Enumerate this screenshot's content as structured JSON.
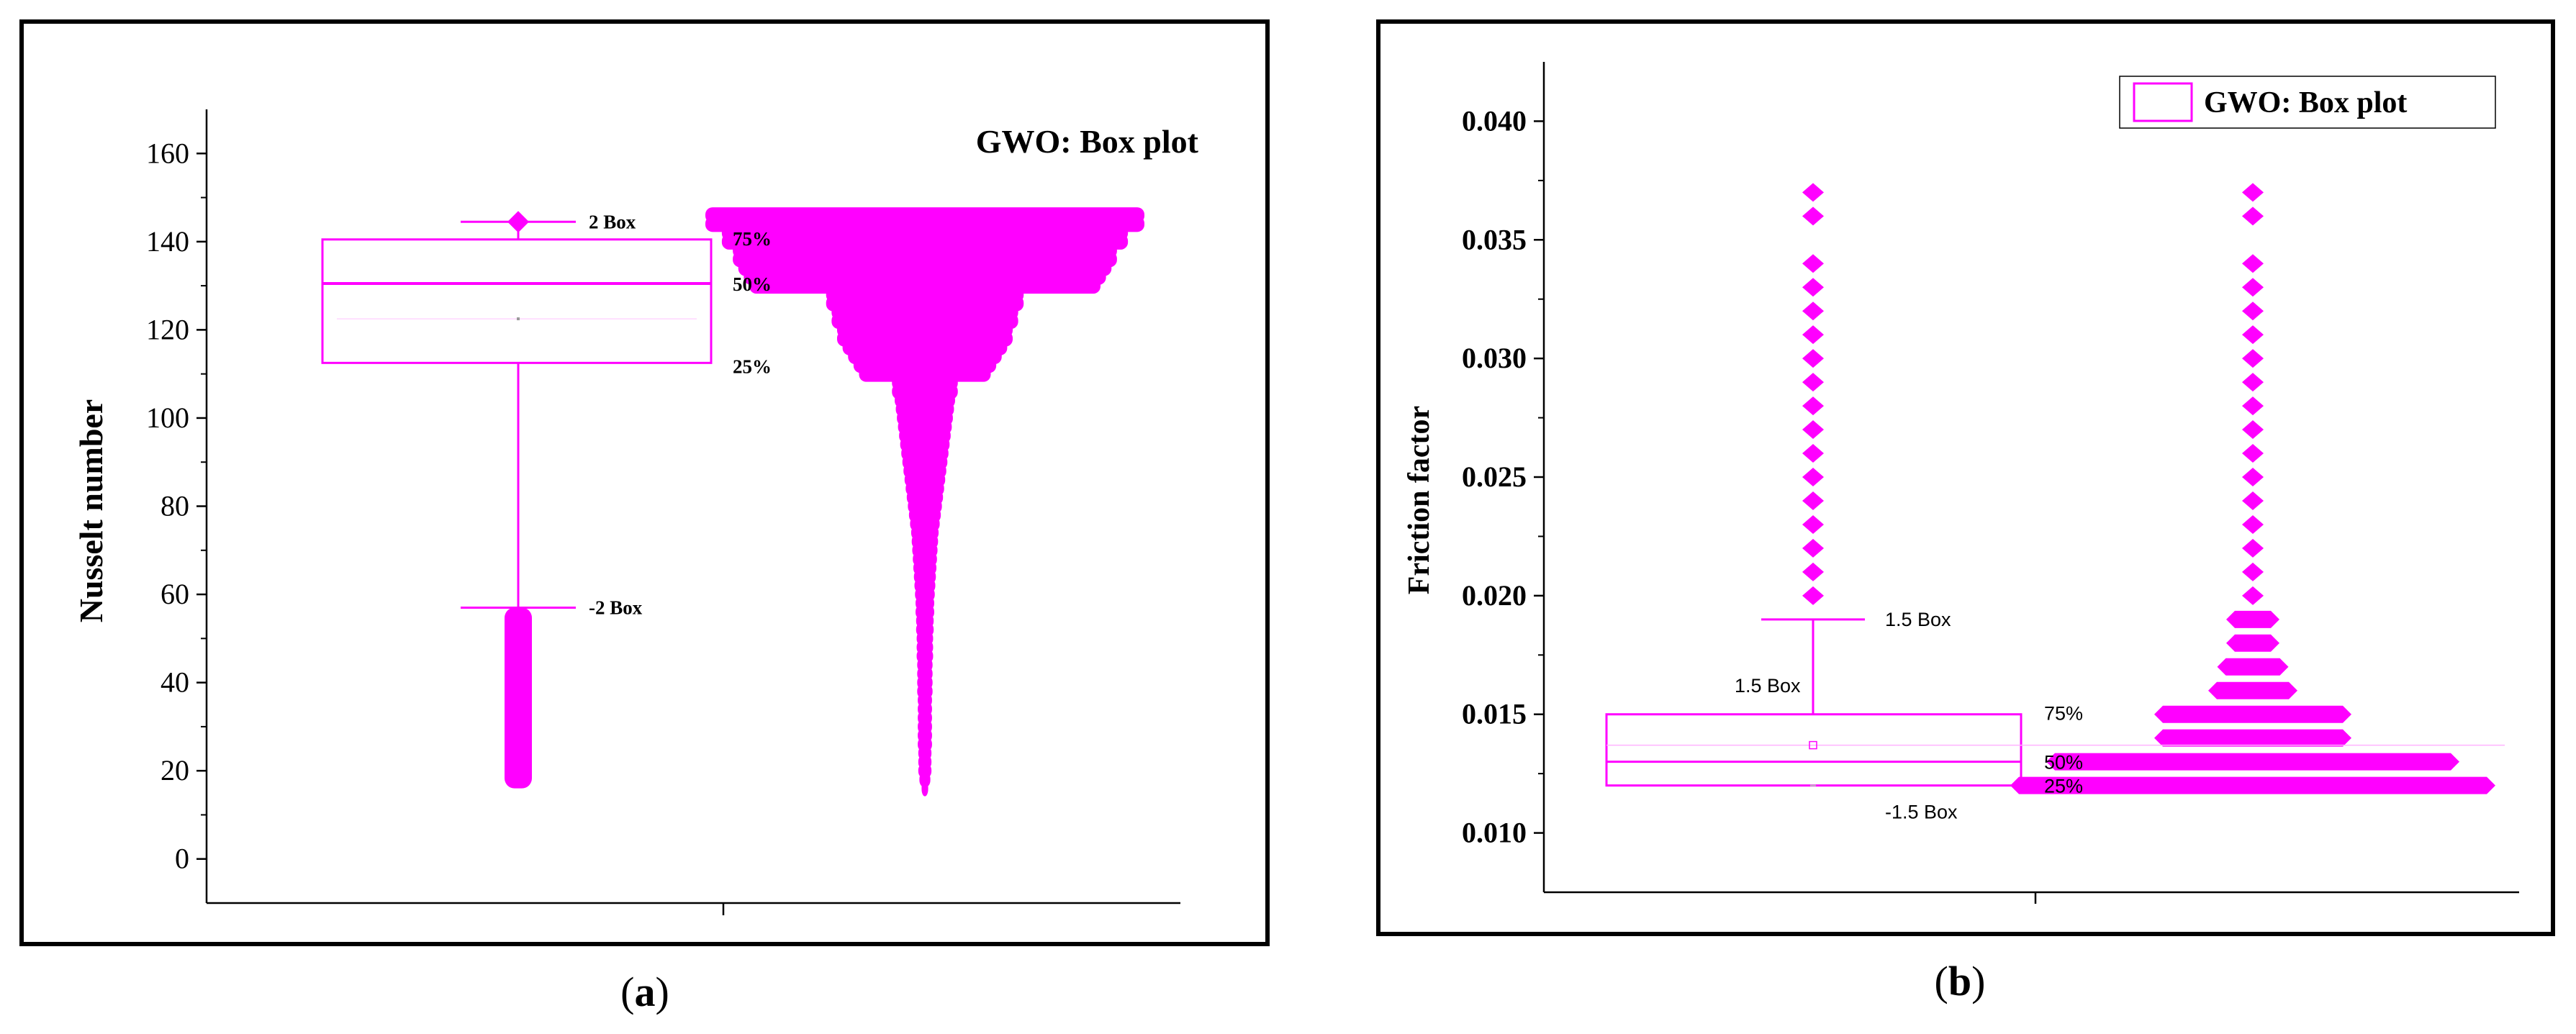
{
  "colors": {
    "accent": "#ff00ff",
    "frame": "#000000",
    "axis": "#000000",
    "background": "#ffffff"
  },
  "chart_data": [
    {
      "type": "box",
      "panel_label": "(a)",
      "title": "GWO: Box plot",
      "xlabel": "",
      "ylabel": "Nusselt number",
      "ylim": [
        -10,
        170
      ],
      "yticks": [
        0,
        20,
        40,
        60,
        80,
        100,
        120,
        140,
        160
      ],
      "ytick_labels": [
        "0",
        "20",
        "40",
        "60",
        "80",
        "100",
        "120",
        "140",
        "160"
      ],
      "legend": "none",
      "box": {
        "q1": 112.5,
        "median": 130.5,
        "q3": 140.5,
        "mean": 122.5,
        "upper_whisker": 144.5,
        "lower_whisker": 57
      },
      "annotations": {
        "upper": "2 Box",
        "lower": "-2 Box",
        "q3": "75%",
        "median": "50%",
        "q1": "25%"
      },
      "outliers": {
        "min": 16,
        "max": 57
      },
      "distribution": [
        [
          146,
          0.4
        ],
        [
          144,
          0.4
        ],
        [
          142,
          0.37
        ],
        [
          140,
          0.37
        ],
        [
          138,
          0.35
        ],
        [
          136,
          0.35
        ],
        [
          134,
          0.34
        ],
        [
          132,
          0.33
        ],
        [
          130,
          0.32
        ],
        [
          128,
          0.18
        ],
        [
          126,
          0.18
        ],
        [
          124,
          0.17
        ],
        [
          122,
          0.17
        ],
        [
          120,
          0.16
        ],
        [
          118,
          0.16
        ],
        [
          116,
          0.15
        ],
        [
          114,
          0.14
        ],
        [
          112,
          0.13
        ],
        [
          110,
          0.12
        ],
        [
          108,
          0.06
        ],
        [
          106,
          0.06
        ],
        [
          104,
          0.055
        ],
        [
          102,
          0.053
        ],
        [
          100,
          0.051
        ],
        [
          98,
          0.049
        ],
        [
          96,
          0.047
        ],
        [
          94,
          0.045
        ],
        [
          92,
          0.043
        ],
        [
          90,
          0.041
        ],
        [
          88,
          0.039
        ],
        [
          86,
          0.037
        ],
        [
          84,
          0.035
        ],
        [
          82,
          0.033
        ],
        [
          80,
          0.031
        ],
        [
          78,
          0.029
        ],
        [
          76,
          0.027
        ],
        [
          74,
          0.025
        ],
        [
          72,
          0.024
        ],
        [
          70,
          0.023
        ],
        [
          68,
          0.022
        ],
        [
          66,
          0.021
        ],
        [
          64,
          0.02
        ],
        [
          62,
          0.019
        ],
        [
          60,
          0.018
        ],
        [
          58,
          0.017
        ],
        [
          56,
          0.017
        ],
        [
          54,
          0.016
        ],
        [
          52,
          0.016
        ],
        [
          50,
          0.015
        ],
        [
          48,
          0.015
        ],
        [
          46,
          0.015
        ],
        [
          44,
          0.014
        ],
        [
          42,
          0.014
        ],
        [
          40,
          0.014
        ],
        [
          38,
          0.014
        ],
        [
          36,
          0.013
        ],
        [
          34,
          0.013
        ],
        [
          32,
          0.013
        ],
        [
          30,
          0.013
        ],
        [
          28,
          0.013
        ],
        [
          26,
          0.013
        ],
        [
          24,
          0.012
        ],
        [
          22,
          0.012
        ],
        [
          20,
          0.012
        ],
        [
          18,
          0.01
        ],
        [
          16,
          0.006
        ]
      ]
    },
    {
      "type": "box",
      "panel_label": "(b)",
      "title": "",
      "legend_label": "GWO: Box plot",
      "legend": "top-right",
      "xlabel": "",
      "ylabel": "Friction factor",
      "ylim": [
        0.0075,
        0.0425
      ],
      "yticks": [
        0.01,
        0.015,
        0.02,
        0.025,
        0.03,
        0.035,
        0.04
      ],
      "ytick_labels": [
        "0.010",
        "0.015",
        "0.020",
        "0.025",
        "0.030",
        "0.035",
        "0.040"
      ],
      "box": {
        "q1": 0.012,
        "median": 0.013,
        "q3": 0.015,
        "mean": 0.0137,
        "upper_whisker": 0.019,
        "lower_whisker": 0.012
      },
      "annotations": {
        "upper": "1.5 Box",
        "upper_inner": "1.5 Box",
        "lower": "-1.5 Box",
        "q3": "75%",
        "median": "50%",
        "q1": "25%"
      },
      "outliers": [
        0.02,
        0.021,
        0.022,
        0.023,
        0.024,
        0.025,
        0.026,
        0.027,
        0.028,
        0.029,
        0.03,
        0.031,
        0.032,
        0.033,
        0.034,
        0.036,
        0.037
      ],
      "distribution": [
        [
          0.037,
          1
        ],
        [
          0.036,
          1
        ],
        [
          0.034,
          1
        ],
        [
          0.033,
          1
        ],
        [
          0.032,
          1
        ],
        [
          0.031,
          1
        ],
        [
          0.03,
          1
        ],
        [
          0.029,
          1
        ],
        [
          0.028,
          1
        ],
        [
          0.027,
          1
        ],
        [
          0.026,
          1
        ],
        [
          0.025,
          1
        ],
        [
          0.024,
          1
        ],
        [
          0.023,
          1
        ],
        [
          0.022,
          1
        ],
        [
          0.021,
          1
        ],
        [
          0.02,
          1
        ],
        [
          0.019,
          2
        ],
        [
          0.018,
          2
        ],
        [
          0.017,
          3
        ],
        [
          0.016,
          4
        ],
        [
          0.015,
          10
        ],
        [
          0.014,
          10
        ],
        [
          0.013,
          22
        ],
        [
          0.012,
          26
        ]
      ]
    }
  ]
}
